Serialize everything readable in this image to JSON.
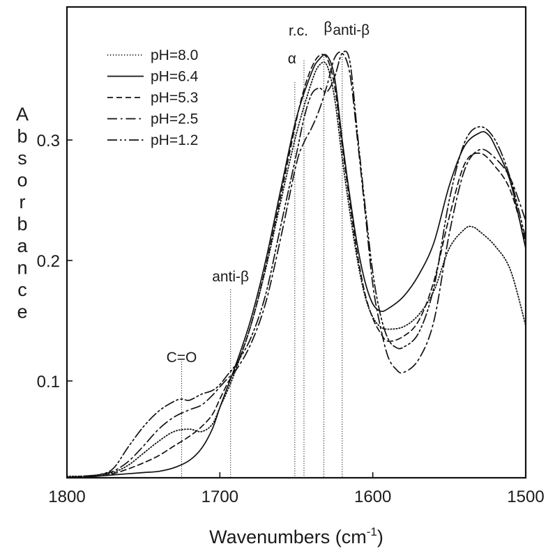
{
  "chart_data": {
    "type": "line",
    "title": "",
    "xlabel": {
      "main": "Wavenumbers (cm",
      "sup": "-1",
      "tail": ")"
    },
    "ylabel": "Absorbance",
    "xlim": [
      1800,
      1500
    ],
    "ylim": [
      0.018,
      0.385
    ],
    "x_ticks": [
      {
        "value": 1800,
        "label": "1800"
      },
      {
        "value": 1700,
        "label": "1700"
      },
      {
        "value": 1600,
        "label": "1600"
      },
      {
        "value": 1500,
        "label": "1500"
      }
    ],
    "y_ticks": [
      {
        "value": 0.1,
        "label": "0.1"
      },
      {
        "value": 0.2,
        "label": "0.2"
      },
      {
        "value": 0.3,
        "label": "0.3"
      }
    ],
    "grid": false,
    "legend_position": "top-left",
    "annotations": [
      {
        "label": "C=O",
        "x": 1725,
        "y_top": 0.116
      },
      {
        "label": "anti-β",
        "x": 1693,
        "y_top": 0.176
      },
      {
        "label": "α",
        "x": 1651,
        "y_top": 0.348
      },
      {
        "label": "r.c.",
        "x": 1645,
        "y_top": 0.366
      },
      {
        "label": "β",
        "x": 1632,
        "y_top": 0.369
      },
      {
        "label": "anti-β",
        "x": 1620,
        "y_top": 0.369
      }
    ],
    "series": [
      {
        "name": "pH=8.0",
        "dash": "dotted",
        "points": [
          [
            1800,
            0.021
          ],
          [
            1790,
            0.021
          ],
          [
            1780,
            0.022
          ],
          [
            1770,
            0.024
          ],
          [
            1760,
            0.03
          ],
          [
            1750,
            0.04
          ],
          [
            1740,
            0.05
          ],
          [
            1730,
            0.058
          ],
          [
            1720,
            0.06
          ],
          [
            1712,
            0.058
          ],
          [
            1705,
            0.064
          ],
          [
            1700,
            0.078
          ],
          [
            1695,
            0.092
          ],
          [
            1690,
            0.108
          ],
          [
            1680,
            0.145
          ],
          [
            1670,
            0.193
          ],
          [
            1660,
            0.25
          ],
          [
            1650,
            0.305
          ],
          [
            1640,
            0.348
          ],
          [
            1635,
            0.362
          ],
          [
            1630,
            0.362
          ],
          [
            1625,
            0.335
          ],
          [
            1620,
            0.285
          ],
          [
            1615,
            0.24
          ],
          [
            1610,
            0.2
          ],
          [
            1605,
            0.17
          ],
          [
            1600,
            0.153
          ],
          [
            1595,
            0.145
          ],
          [
            1590,
            0.143
          ],
          [
            1580,
            0.145
          ],
          [
            1570,
            0.155
          ],
          [
            1560,
            0.175
          ],
          [
            1550,
            0.21
          ],
          [
            1540,
            0.226
          ],
          [
            1535,
            0.228
          ],
          [
            1530,
            0.224
          ],
          [
            1520,
            0.212
          ],
          [
            1510,
            0.192
          ],
          [
            1500,
            0.146
          ]
        ]
      },
      {
        "name": "pH=6.4",
        "dash": "solid",
        "points": [
          [
            1800,
            0.02
          ],
          [
            1790,
            0.02
          ],
          [
            1780,
            0.021
          ],
          [
            1770,
            0.022
          ],
          [
            1760,
            0.023
          ],
          [
            1750,
            0.024
          ],
          [
            1740,
            0.025
          ],
          [
            1730,
            0.028
          ],
          [
            1720,
            0.034
          ],
          [
            1712,
            0.044
          ],
          [
            1705,
            0.06
          ],
          [
            1700,
            0.078
          ],
          [
            1695,
            0.095
          ],
          [
            1690,
            0.112
          ],
          [
            1680,
            0.15
          ],
          [
            1670,
            0.2
          ],
          [
            1660,
            0.26
          ],
          [
            1650,
            0.318
          ],
          [
            1640,
            0.356
          ],
          [
            1635,
            0.367
          ],
          [
            1630,
            0.37
          ],
          [
            1625,
            0.352
          ],
          [
            1620,
            0.3
          ],
          [
            1615,
            0.253
          ],
          [
            1610,
            0.212
          ],
          [
            1605,
            0.182
          ],
          [
            1600,
            0.164
          ],
          [
            1595,
            0.158
          ],
          [
            1590,
            0.16
          ],
          [
            1580,
            0.17
          ],
          [
            1570,
            0.188
          ],
          [
            1560,
            0.215
          ],
          [
            1550,
            0.262
          ],
          [
            1540,
            0.295
          ],
          [
            1530,
            0.306
          ],
          [
            1525,
            0.305
          ],
          [
            1520,
            0.295
          ],
          [
            1510,
            0.265
          ],
          [
            1500,
            0.21
          ]
        ]
      },
      {
        "name": "pH=5.3",
        "dash": "dashed",
        "points": [
          [
            1800,
            0.02
          ],
          [
            1790,
            0.02
          ],
          [
            1780,
            0.021
          ],
          [
            1770,
            0.023
          ],
          [
            1760,
            0.027
          ],
          [
            1750,
            0.032
          ],
          [
            1740,
            0.038
          ],
          [
            1730,
            0.046
          ],
          [
            1720,
            0.054
          ],
          [
            1712,
            0.062
          ],
          [
            1705,
            0.072
          ],
          [
            1700,
            0.085
          ],
          [
            1695,
            0.098
          ],
          [
            1690,
            0.11
          ],
          [
            1680,
            0.145
          ],
          [
            1670,
            0.195
          ],
          [
            1660,
            0.255
          ],
          [
            1650,
            0.316
          ],
          [
            1645,
            0.342
          ],
          [
            1640,
            0.36
          ],
          [
            1635,
            0.37
          ],
          [
            1630,
            0.368
          ],
          [
            1625,
            0.345
          ],
          [
            1620,
            0.295
          ],
          [
            1615,
            0.248
          ],
          [
            1610,
            0.205
          ],
          [
            1605,
            0.172
          ],
          [
            1600,
            0.152
          ],
          [
            1595,
            0.14
          ],
          [
            1590,
            0.133
          ],
          [
            1580,
            0.137
          ],
          [
            1570,
            0.15
          ],
          [
            1560,
            0.183
          ],
          [
            1550,
            0.236
          ],
          [
            1540,
            0.28
          ],
          [
            1530,
            0.289
          ],
          [
            1520,
            0.278
          ],
          [
            1510,
            0.258
          ],
          [
            1500,
            0.215
          ]
        ]
      },
      {
        "name": "pH=2.5",
        "dash": "dashdot",
        "points": [
          [
            1800,
            0.02
          ],
          [
            1790,
            0.021
          ],
          [
            1780,
            0.022
          ],
          [
            1770,
            0.025
          ],
          [
            1760,
            0.033
          ],
          [
            1750,
            0.046
          ],
          [
            1740,
            0.06
          ],
          [
            1730,
            0.07
          ],
          [
            1720,
            0.076
          ],
          [
            1712,
            0.08
          ],
          [
            1705,
            0.088
          ],
          [
            1700,
            0.095
          ],
          [
            1695,
            0.102
          ],
          [
            1690,
            0.108
          ],
          [
            1680,
            0.13
          ],
          [
            1670,
            0.165
          ],
          [
            1660,
            0.22
          ],
          [
            1650,
            0.28
          ],
          [
            1645,
            0.298
          ],
          [
            1640,
            0.31
          ],
          [
            1635,
            0.325
          ],
          [
            1630,
            0.345
          ],
          [
            1625,
            0.368
          ],
          [
            1620,
            0.372
          ],
          [
            1615,
            0.355
          ],
          [
            1610,
            0.3
          ],
          [
            1605,
            0.24
          ],
          [
            1600,
            0.18
          ],
          [
            1595,
            0.145
          ],
          [
            1590,
            0.12
          ],
          [
            1585,
            0.11
          ],
          [
            1580,
            0.107
          ],
          [
            1570,
            0.118
          ],
          [
            1560,
            0.15
          ],
          [
            1550,
            0.222
          ],
          [
            1540,
            0.275
          ],
          [
            1530,
            0.292
          ],
          [
            1520,
            0.285
          ],
          [
            1510,
            0.268
          ],
          [
            1500,
            0.233
          ]
        ]
      },
      {
        "name": "pH=1.2",
        "dash": "dashdotdot",
        "points": [
          [
            1800,
            0.02
          ],
          [
            1790,
            0.021
          ],
          [
            1780,
            0.022
          ],
          [
            1770,
            0.027
          ],
          [
            1760,
            0.045
          ],
          [
            1750,
            0.062
          ],
          [
            1740,
            0.075
          ],
          [
            1730,
            0.083
          ],
          [
            1725,
            0.085
          ],
          [
            1720,
            0.084
          ],
          [
            1712,
            0.089
          ],
          [
            1705,
            0.092
          ],
          [
            1700,
            0.097
          ],
          [
            1695,
            0.105
          ],
          [
            1690,
            0.113
          ],
          [
            1680,
            0.135
          ],
          [
            1670,
            0.172
          ],
          [
            1660,
            0.23
          ],
          [
            1650,
            0.288
          ],
          [
            1645,
            0.318
          ],
          [
            1640,
            0.338
          ],
          [
            1635,
            0.343
          ],
          [
            1630,
            0.34
          ],
          [
            1625,
            0.352
          ],
          [
            1620,
            0.372
          ],
          [
            1615,
            0.365
          ],
          [
            1610,
            0.305
          ],
          [
            1605,
            0.245
          ],
          [
            1600,
            0.19
          ],
          [
            1595,
            0.155
          ],
          [
            1590,
            0.135
          ],
          [
            1585,
            0.128
          ],
          [
            1580,
            0.128
          ],
          [
            1570,
            0.14
          ],
          [
            1560,
            0.178
          ],
          [
            1550,
            0.25
          ],
          [
            1540,
            0.298
          ],
          [
            1530,
            0.311
          ],
          [
            1520,
            0.3
          ],
          [
            1510,
            0.268
          ],
          [
            1500,
            0.218
          ]
        ]
      }
    ]
  }
}
